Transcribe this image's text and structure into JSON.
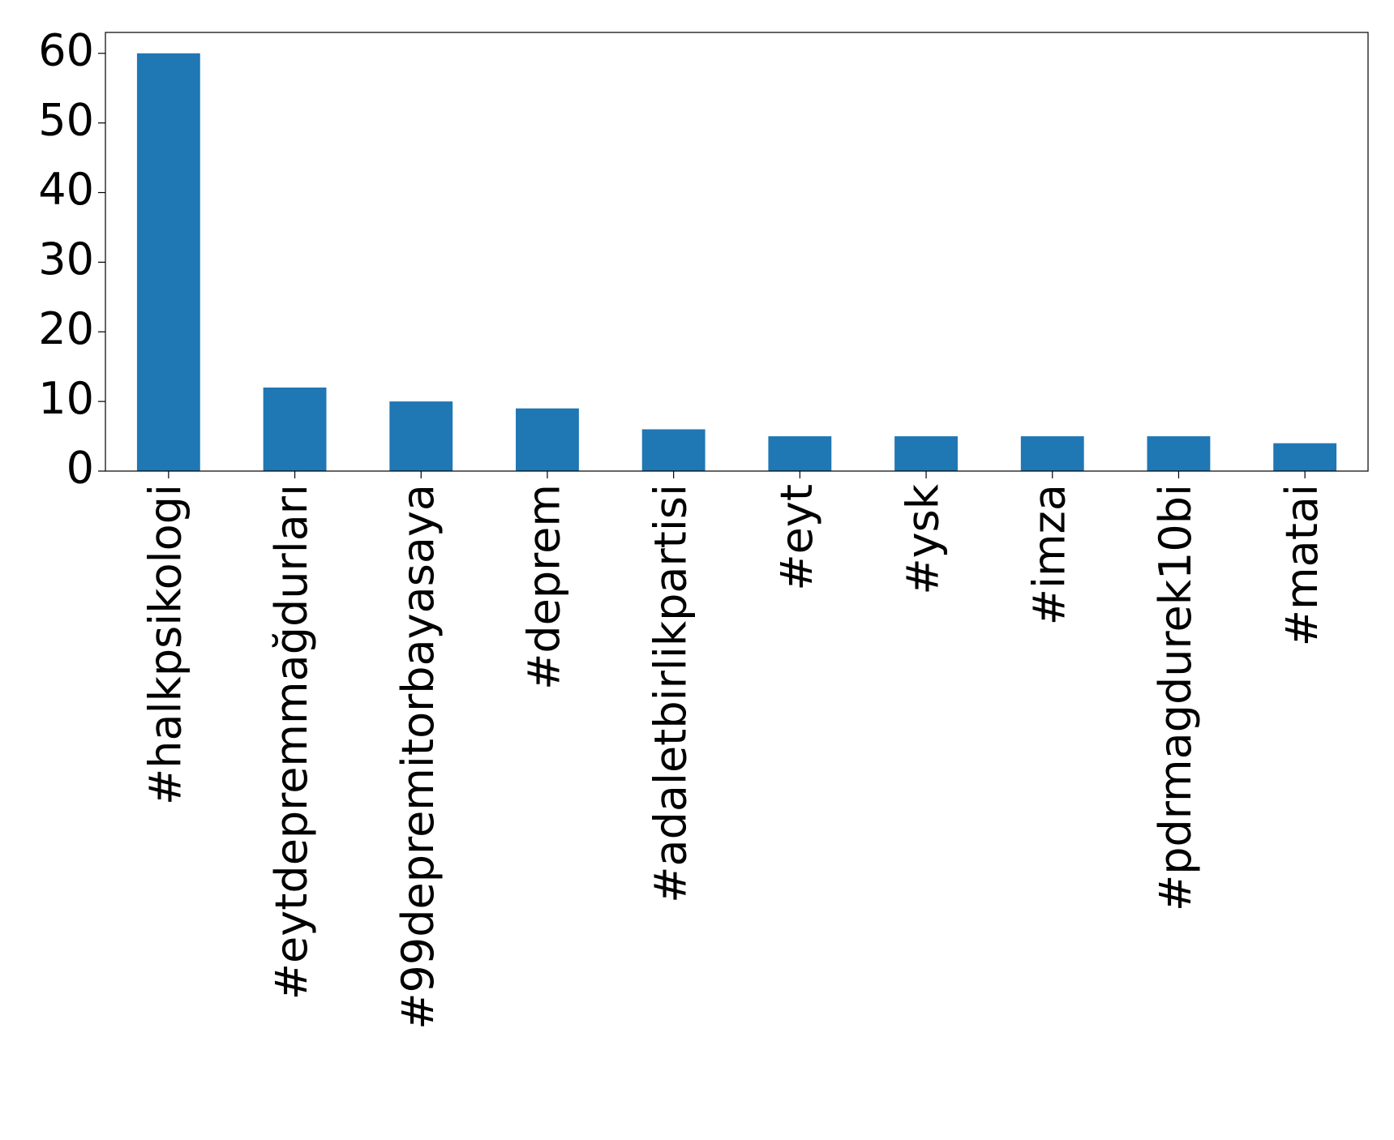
{
  "chart_data": {
    "type": "bar",
    "categories": [
      "#halkpsikologi",
      "#eytdepremmağdurları",
      "#99depremitorbayasaya",
      "#deprem",
      "#adaletbirlikpartisi",
      "#eyt",
      "#ysk",
      "#imza",
      "#pdrmagdurek10bi",
      "#matai"
    ],
    "values": [
      60,
      12,
      10,
      9,
      6,
      5,
      5,
      5,
      5,
      4
    ],
    "color": "#1f77b4",
    "ylim": [
      0,
      63
    ],
    "yticks": [
      0,
      10,
      20,
      30,
      40,
      50,
      60
    ],
    "grid": false
  }
}
